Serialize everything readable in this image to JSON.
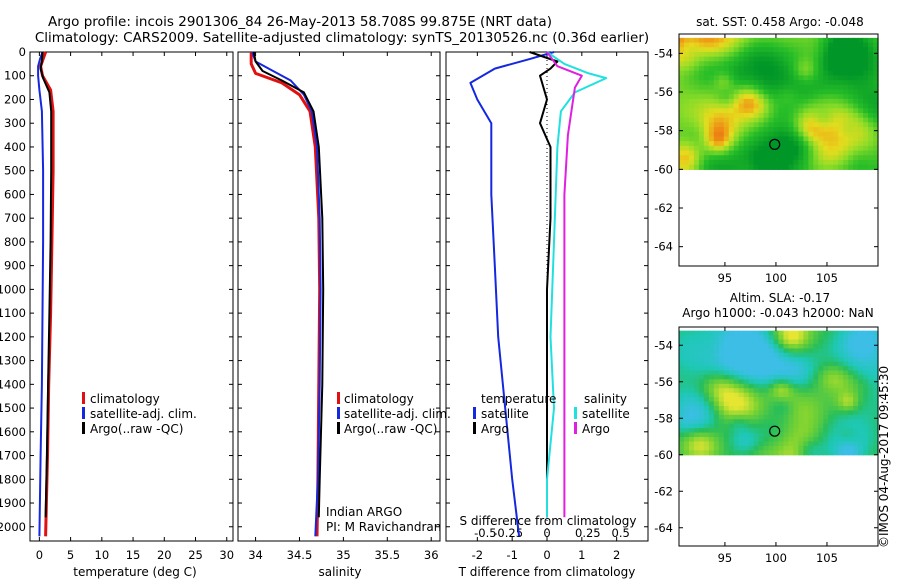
{
  "title_line1": "Argo profile: incois 2901306_84 26-May-2013 58.708S 99.875E (NRT data)",
  "title_line2": "Climatology: CARS2009. Satellite-adjusted climatology: synTS_20130526.nc (0.36d earlier)",
  "colors": {
    "climatology": "#e01010",
    "satellite": "#1428e0",
    "argo": "#000000",
    "sat_salinity": "#20e0e0",
    "argo_salinity": "#e020e0"
  },
  "chart_data": [
    {
      "type": "line",
      "title": "",
      "xlabel": "temperature (deg C)",
      "ylabel": "",
      "xlim": [
        -1.5,
        31
      ],
      "ylim": [
        2060,
        0
      ],
      "xticks": [
        0,
        5,
        10,
        15,
        20,
        25,
        30
      ],
      "yticks": [
        0,
        100,
        200,
        300,
        400,
        500,
        600,
        700,
        800,
        900,
        1000,
        1100,
        1200,
        1300,
        1400,
        1500,
        1600,
        1700,
        1800,
        1900,
        2000
      ],
      "legend": [
        "climatology",
        "satellite-adj. clim.",
        "Argo(..raw -QC)"
      ],
      "series": [
        {
          "name": "climatology",
          "color": "#e01010",
          "width": 3,
          "points": [
            [
              1.0,
              0
            ],
            [
              0.6,
              30
            ],
            [
              0.2,
              60
            ],
            [
              0.5,
              100
            ],
            [
              1.8,
              160
            ],
            [
              2.2,
              250
            ],
            [
              2.2,
              500
            ],
            [
              2.0,
              800
            ],
            [
              1.8,
              1100
            ],
            [
              1.5,
              1400
            ],
            [
              1.3,
              1700
            ],
            [
              1.0,
              2040
            ]
          ]
        },
        {
          "name": "satellite-adj. clim.",
          "color": "#1428e0",
          "width": 2,
          "points": [
            [
              0.5,
              0
            ],
            [
              0.1,
              30
            ],
            [
              -0.2,
              60
            ],
            [
              -0.2,
              100
            ],
            [
              0.0,
              160
            ],
            [
              0.4,
              250
            ],
            [
              0.6,
              500
            ],
            [
              0.6,
              800
            ],
            [
              0.5,
              1100
            ],
            [
              0.4,
              1400
            ],
            [
              0.2,
              1700
            ],
            [
              0.0,
              2040
            ]
          ]
        },
        {
          "name": "Argo",
          "color": "#000000",
          "width": 2,
          "points": [
            [
              0.5,
              0
            ],
            [
              0.4,
              40
            ],
            [
              0.2,
              70
            ],
            [
              0.6,
              110
            ],
            [
              1.6,
              170
            ],
            [
              1.9,
              250
            ],
            [
              1.9,
              500
            ],
            [
              1.8,
              800
            ],
            [
              1.6,
              1100
            ],
            [
              1.4,
              1400
            ],
            [
              1.2,
              1700
            ],
            [
              1.0,
              1960
            ]
          ]
        }
      ]
    },
    {
      "type": "line",
      "title": "",
      "xlabel": "salinity",
      "ylabel": "",
      "xlim": [
        33.8,
        36.1
      ],
      "ylim": [
        2060,
        0
      ],
      "xticks": [
        34,
        34.5,
        35,
        35.5,
        36
      ],
      "legend": [
        "climatology",
        "satellite-adj. clim.",
        "Argo(..raw -QC)"
      ],
      "annotation": [
        "Indian ARGO",
        "PI: M Ravichandran"
      ],
      "series": [
        {
          "name": "climatology",
          "color": "#e01010",
          "width": 3,
          "points": [
            [
              33.95,
              0
            ],
            [
              33.95,
              50
            ],
            [
              34.0,
              90
            ],
            [
              34.3,
              130
            ],
            [
              34.5,
              180
            ],
            [
              34.62,
              250
            ],
            [
              34.68,
              400
            ],
            [
              34.72,
              700
            ],
            [
              34.73,
              1000
            ],
            [
              34.72,
              1400
            ],
            [
              34.71,
              1800
            ],
            [
              34.7,
              2040
            ]
          ]
        },
        {
          "name": "satellite-adj. clim.",
          "color": "#1428e0",
          "width": 2,
          "points": [
            [
              33.96,
              0
            ],
            [
              34.0,
              40
            ],
            [
              34.2,
              80
            ],
            [
              34.4,
              120
            ],
            [
              34.55,
              180
            ],
            [
              34.64,
              250
            ],
            [
              34.7,
              400
            ],
            [
              34.73,
              700
            ],
            [
              34.74,
              1000
            ],
            [
              34.73,
              1400
            ],
            [
              34.71,
              1800
            ],
            [
              34.68,
              2040
            ]
          ]
        },
        {
          "name": "Argo",
          "color": "#000000",
          "width": 2,
          "points": [
            [
              33.98,
              0
            ],
            [
              34.0,
              40
            ],
            [
              34.08,
              80
            ],
            [
              34.3,
              120
            ],
            [
              34.55,
              170
            ],
            [
              34.66,
              250
            ],
            [
              34.72,
              400
            ],
            [
              34.76,
              700
            ],
            [
              34.77,
              1000
            ],
            [
              34.76,
              1400
            ],
            [
              34.73,
              1800
            ],
            [
              34.72,
              1960
            ]
          ]
        }
      ]
    },
    {
      "type": "line",
      "title": "",
      "xlabel": "T difference from climatology",
      "x2label": "S difference from climatology",
      "ylabel": "",
      "xlim": [
        -2.9,
        2.9
      ],
      "ylim": [
        2060,
        0
      ],
      "xticks": [
        -2,
        -1,
        0,
        1,
        2
      ],
      "x2ticks": [
        -0.5,
        -0.25,
        0,
        0.25,
        0.5
      ],
      "legend_temperature": [
        "temperature",
        "satellite",
        "Argo"
      ],
      "legend_salinity": [
        "salinity",
        "satellite",
        "Argo"
      ],
      "series": [
        {
          "name": "temperature satellite",
          "color": "#1428e0",
          "width": 2,
          "points": [
            [
              0.2,
              0
            ],
            [
              -0.5,
              30
            ],
            [
              -1.5,
              70
            ],
            [
              -2.2,
              130
            ],
            [
              -2.0,
              200
            ],
            [
              -1.6,
              300
            ],
            [
              -1.6,
              600
            ],
            [
              -1.5,
              900
            ],
            [
              -1.4,
              1200
            ],
            [
              -1.2,
              1500
            ],
            [
              -1.0,
              1800
            ],
            [
              -0.8,
              2040
            ]
          ]
        },
        {
          "name": "temperature Argo",
          "color": "#000000",
          "width": 2,
          "points": [
            [
              -0.5,
              0
            ],
            [
              0.3,
              40
            ],
            [
              0.1,
              70
            ],
            [
              -0.2,
              100
            ],
            [
              0.0,
              200
            ],
            [
              -0.2,
              300
            ],
            [
              0.1,
              400
            ],
            [
              0.1,
              700
            ],
            [
              0.0,
              1000
            ],
            [
              0.0,
              1400
            ],
            [
              0.0,
              1700
            ],
            [
              0.0,
              1960
            ]
          ]
        },
        {
          "name": "salinity satellite",
          "color": "#20e0e0",
          "width": 2,
          "points": [
            [
              0.0,
              0
            ],
            [
              0.5,
              50
            ],
            [
              1.2,
              90
            ],
            [
              1.7,
              110
            ],
            [
              0.8,
              170
            ],
            [
              0.4,
              250
            ],
            [
              0.3,
              400
            ],
            [
              0.2,
              800
            ],
            [
              0.1,
              1200
            ],
            [
              0.2,
              1500
            ],
            [
              0.0,
              1800
            ],
            [
              0.0,
              1960
            ]
          ]
        },
        {
          "name": "salinity Argo",
          "color": "#e020e0",
          "width": 2,
          "points": [
            [
              0.0,
              0
            ],
            [
              0.3,
              60
            ],
            [
              1.0,
              100
            ],
            [
              0.8,
              150
            ],
            [
              0.7,
              250
            ],
            [
              0.6,
              350
            ],
            [
              0.5,
              600
            ],
            [
              0.5,
              900
            ],
            [
              0.5,
              1200
            ],
            [
              0.5,
              1500
            ],
            [
              0.5,
              1800
            ],
            [
              0.5,
              1960
            ]
          ]
        }
      ]
    },
    {
      "type": "heatmap",
      "title": "sat. SST: 0.458 Argo: -0.048",
      "xticks": [
        95,
        100,
        105
      ],
      "yticks": [
        -54,
        -56,
        -58,
        -60,
        -62,
        -64
      ],
      "xlim": [
        90.5,
        110
      ],
      "ylim": [
        -65,
        -53
      ],
      "data_extent": {
        "lat": [
          -60,
          -53.2
        ]
      },
      "profile_location": [
        99.875,
        -58.708
      ],
      "palette": "sst"
    },
    {
      "type": "heatmap",
      "title_line1": "Altim. SLA: -0.17",
      "title_line2": "Argo h1000: -0.043 h2000: NaN",
      "xticks": [
        95,
        100,
        105
      ],
      "yticks": [
        -54,
        -56,
        -58,
        -60,
        -62,
        -64
      ],
      "xlim": [
        90.5,
        110
      ],
      "ylim": [
        -65,
        -53
      ],
      "data_extent": {
        "lat": [
          -60,
          -53.2
        ]
      },
      "profile_location": [
        99.875,
        -58.708
      ],
      "palette": "sla"
    }
  ],
  "credit": "©IMOS 04-Aug-2017 09:45:30"
}
